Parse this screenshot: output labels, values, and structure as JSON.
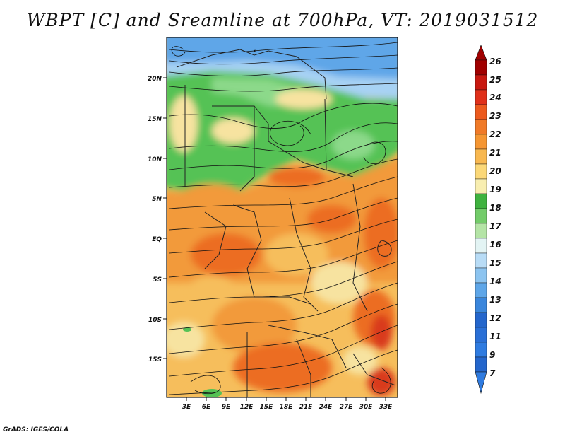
{
  "title": "WBPT [C] and Sreamline at 700hPa, VT: 2019031512",
  "credit": "GrADS: IGES/COLA",
  "map": {
    "lat_labels": [
      "20N",
      "15N",
      "10N",
      "5N",
      "EQ",
      "5S",
      "10S",
      "15S"
    ],
    "lon_labels": [
      "3E",
      "6E",
      "9E",
      "12E",
      "15E",
      "18E",
      "21E",
      "24E",
      "27E",
      "30E",
      "33E"
    ],
    "regions": {
      "sahara_blue": "#5ea6e8",
      "pale_blue": "#a7d2f4",
      "green_band": "#55c255",
      "light_green": "#8cd98a",
      "pale_yellow": "#f7e3a0",
      "light_orange": "#f6be5c",
      "orange": "#f29a3a",
      "dark_orange": "#ec6d24",
      "red": "#d93a1a"
    }
  },
  "colorbar": {
    "labels": [
      "26",
      "25",
      "24",
      "23",
      "22",
      "21",
      "20",
      "19",
      "18",
      "17",
      "16",
      "15",
      "14",
      "13",
      "12",
      "11",
      "9",
      "7"
    ],
    "colors": [
      "#a00000",
      "#c81810",
      "#e0301a",
      "#ec5a1e",
      "#f07a28",
      "#f59632",
      "#f8b850",
      "#fbd878",
      "#f8eeb0",
      "#3fb23f",
      "#73cc6a",
      "#b4e4a6",
      "#e3f4f4",
      "#b8dcf6",
      "#8cc4f0",
      "#5ea6e8",
      "#3a86dc",
      "#2466cc"
    ]
  }
}
